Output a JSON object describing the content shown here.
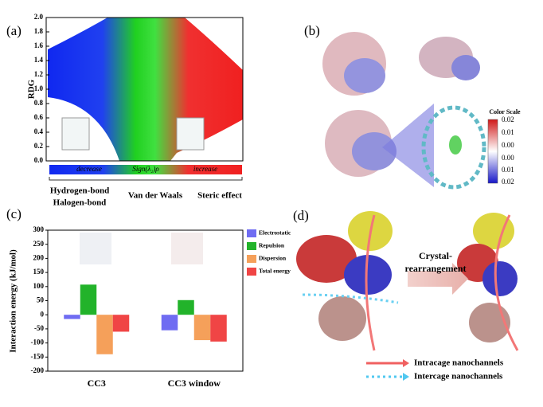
{
  "chart_data": [
    {
      "type": "scatter",
      "panel": "(a)",
      "y_label": "RDG",
      "ylim": [
        0,
        2
      ],
      "yticks": [
        {
          "value": 0,
          "label": "0.0"
        },
        {
          "value": 0.2,
          "label": "0.2"
        },
        {
          "value": 0.4,
          "label": "0.4"
        },
        {
          "value": 0.6,
          "label": "0.6"
        },
        {
          "value": 0.8,
          "label": "0.8"
        },
        {
          "value": 1,
          "label": "1.0"
        },
        {
          "value": 1.2,
          "label": "1.2"
        },
        {
          "value": 1.4,
          "label": "1.4"
        },
        {
          "value": 1.6,
          "label": "1.6"
        },
        {
          "value": 1.8,
          "label": "1.8"
        },
        {
          "value": 2,
          "label": "2.0"
        }
      ],
      "x_scale_labels": [
        "decrease",
        "Sign(λ₂)ρ",
        "increase"
      ],
      "interaction_labels": [
        "Hydrogen-bond",
        "Halogen-bond",
        "Van der Waals",
        "Steric effect"
      ]
    },
    {
      "type": "bar",
      "panel": "(c)",
      "y_label": "Interaction energy (kJ/mol)",
      "categories": [
        "CC3",
        "CC3 window"
      ],
      "series": [
        {
          "name": "Electrostatic",
          "color": "#6f6cf2",
          "values": [
            -15,
            -55
          ]
        },
        {
          "name": "Repulsion",
          "color": "#22b32a",
          "values": [
            107,
            52
          ]
        },
        {
          "name": "Dispersion",
          "color": "#f5a05a",
          "values": [
            -140,
            -90
          ]
        },
        {
          "name": "Total energy",
          "color": "#f04545",
          "values": [
            -60,
            -95
          ]
        }
      ],
      "ylim": [
        -200,
        300
      ],
      "yticks": [
        -200,
        -150,
        -100,
        -50,
        0,
        50,
        100,
        150,
        200,
        250,
        300
      ],
      "legend": "right"
    }
  ],
  "panel_b": {
    "label": "(b)",
    "color_scale": {
      "title": "Color Scale",
      "labels": [
        "0.02",
        "0.01",
        "0.00",
        "0.00",
        "0.01",
        "0.02"
      ]
    }
  },
  "panel_d": {
    "label": "(d)",
    "arrow_label": [
      "Crystal-",
      "rearrangement"
    ],
    "legend": [
      "Intracage nanochannels",
      "Intercage nanochannels"
    ]
  }
}
